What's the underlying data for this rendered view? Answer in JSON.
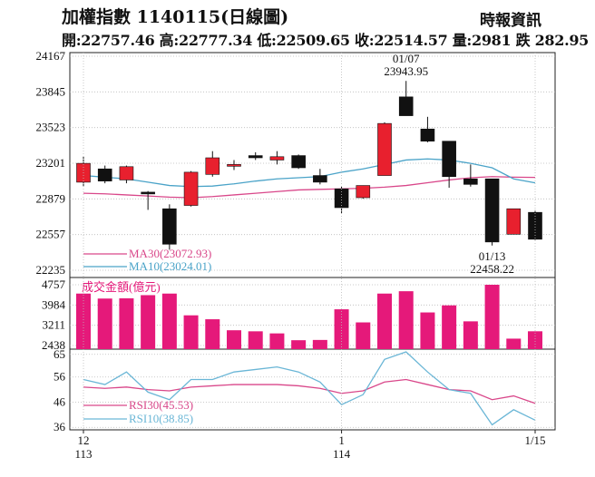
{
  "header": {
    "title": "加權指數 1140115(日線圖)",
    "source": "時報資訊",
    "ohlc_line": "開:22757.46 高:22777.34 低:22509.65 收:22514.57 量:2981 跌 282.95"
  },
  "colors": {
    "up": "#e8202e",
    "down": "#111111",
    "ma30": "#d9478a",
    "ma10": "#4aa3c8",
    "volume": "#e5197a",
    "rsi30": "#d9478a",
    "rsi10": "#6ab6d6"
  },
  "chart_data": [
    {
      "type": "candlestick",
      "yticks": [
        24167,
        23845,
        23523,
        23201,
        22879,
        22557,
        22235
      ],
      "ylim": [
        22235,
        24167
      ],
      "annotations": [
        {
          "label": "01/07",
          "value": "23943.95",
          "at_index": 15
        },
        {
          "label": "01/13",
          "value": "22458.22",
          "at_index": 19
        }
      ],
      "legend": [
        {
          "name": "MA30(23072.93)",
          "color": "#d9478a"
        },
        {
          "name": "MA10(23024.01)",
          "color": "#4aa3c8"
        }
      ],
      "candles": [
        {
          "o": 23030,
          "h": 23260,
          "l": 22990,
          "c": 23200
        },
        {
          "o": 23150,
          "h": 23180,
          "l": 23020,
          "c": 23040
        },
        {
          "o": 23050,
          "h": 23180,
          "l": 23020,
          "c": 23170
        },
        {
          "o": 22940,
          "h": 22950,
          "l": 22780,
          "c": 22930
        },
        {
          "o": 22790,
          "h": 22830,
          "l": 22420,
          "c": 22470
        },
        {
          "o": 22820,
          "h": 23130,
          "l": 22810,
          "c": 23120
        },
        {
          "o": 23100,
          "h": 23310,
          "l": 23080,
          "c": 23250
        },
        {
          "o": 23190,
          "h": 23230,
          "l": 23140,
          "c": 23190
        },
        {
          "o": 23270,
          "h": 23300,
          "l": 23230,
          "c": 23250
        },
        {
          "o": 23230,
          "h": 23310,
          "l": 23190,
          "c": 23260
        },
        {
          "o": 23270,
          "h": 23280,
          "l": 23150,
          "c": 23160
        },
        {
          "o": 23090,
          "h": 23150,
          "l": 23010,
          "c": 23030
        },
        {
          "o": 22970,
          "h": 22990,
          "l": 22750,
          "c": 22800
        },
        {
          "o": 22890,
          "h": 23000,
          "l": 22880,
          "c": 23000
        },
        {
          "o": 23090,
          "h": 23570,
          "l": 23090,
          "c": 23560
        },
        {
          "o": 23800,
          "h": 23944,
          "l": 23640,
          "c": 23630
        },
        {
          "o": 23510,
          "h": 23620,
          "l": 23390,
          "c": 23400
        },
        {
          "o": 23400,
          "h": 23400,
          "l": 22980,
          "c": 23080
        },
        {
          "o": 23060,
          "h": 23190,
          "l": 22990,
          "c": 23010
        },
        {
          "o": 23060,
          "h": 23060,
          "l": 22458,
          "c": 22490
        },
        {
          "o": 22560,
          "h": 22790,
          "l": 22560,
          "c": 22790
        },
        {
          "o": 22757.46,
          "h": 22777.34,
          "l": 22509.65,
          "c": 22514.57
        }
      ],
      "ma30": [
        22930,
        22925,
        22915,
        22905,
        22895,
        22890,
        22900,
        22915,
        22930,
        22945,
        22960,
        22965,
        22970,
        22975,
        22985,
        23000,
        23025,
        23050,
        23070,
        23080,
        23075,
        23072.93
      ],
      "ma10": [
        23090,
        23075,
        23060,
        23030,
        23000,
        22990,
        22995,
        23015,
        23040,
        23060,
        23070,
        23080,
        23120,
        23150,
        23190,
        23230,
        23240,
        23230,
        23200,
        23160,
        23060,
        23024.01
      ]
    },
    {
      "type": "bar",
      "label": "成交金額(億元)",
      "yticks": [
        4757,
        3984,
        3211,
        2438
      ],
      "ylim": [
        2438,
        4757
      ],
      "values": [
        4420,
        4230,
        4240,
        4360,
        4420,
        3590,
        3440,
        3020,
        2980,
        2900,
        2640,
        2650,
        3820,
        3320,
        4420,
        4510,
        3700,
        3970,
        3360,
        4757,
        2700,
        2981
      ]
    },
    {
      "type": "line",
      "yticks": [
        65,
        56,
        46,
        36
      ],
      "ylim": [
        35,
        66
      ],
      "legend": [
        {
          "name": "RSI30(45.53)",
          "color": "#d9478a"
        },
        {
          "name": "RSI10(38.85)",
          "color": "#6ab6d6"
        }
      ],
      "rsi30": [
        52,
        51.5,
        52,
        51,
        50.5,
        52,
        52.5,
        53,
        53,
        53,
        52.5,
        51.5,
        49.5,
        50.5,
        54,
        55,
        53,
        51,
        50.5,
        47,
        48.5,
        45.53
      ],
      "rsi10": [
        55,
        53,
        58,
        50,
        47,
        55,
        55,
        58,
        59,
        60,
        58,
        54,
        45,
        49,
        63,
        66,
        58,
        51,
        49.5,
        37,
        43,
        38.85
      ]
    }
  ],
  "xaxis": {
    "ticks": [
      {
        "label": "12",
        "sub": "113",
        "at_index": 0
      },
      {
        "label": "1",
        "sub": "114",
        "at_index": 12
      },
      {
        "label": "1/15",
        "sub": "",
        "at_index": 21
      }
    ]
  }
}
